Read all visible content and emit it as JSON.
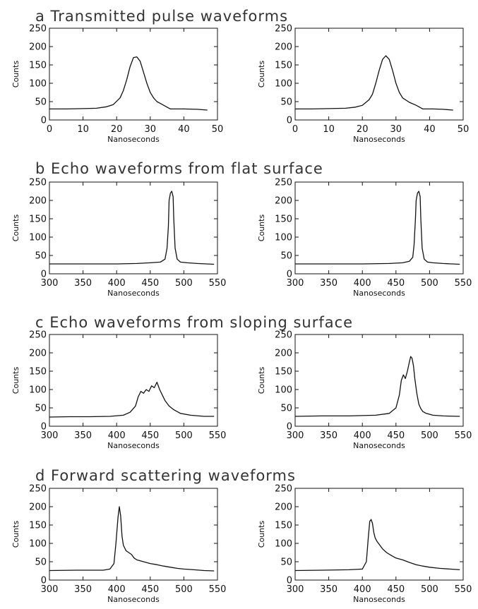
{
  "figure": {
    "sections": [
      {
        "id": "a",
        "title": "a Transmitted pulse waveforms"
      },
      {
        "id": "b",
        "title": "b Echo waveforms from flat surface"
      },
      {
        "id": "c",
        "title": "c Echo waveforms from sloping surface"
      },
      {
        "id": "d",
        "title": "d Forward scattering waveforms"
      }
    ]
  },
  "chart_data": [
    {
      "type": "line",
      "section": "a",
      "panel": "left",
      "xlabel": "Nanoseconds",
      "ylabel": "Counts",
      "xlim": [
        0,
        50
      ],
      "ylim": [
        0,
        250
      ],
      "xticks": [
        0,
        10,
        20,
        30,
        40,
        50
      ],
      "yticks": [
        0,
        50,
        100,
        150,
        200,
        250
      ],
      "series": [
        {
          "x": [
            0,
            5,
            10,
            14,
            17,
            19,
            21,
            22,
            23,
            24,
            25,
            26,
            27,
            28,
            29,
            30,
            31,
            32,
            33,
            34,
            36,
            40,
            44,
            47
          ],
          "y": [
            30,
            30,
            31,
            32,
            36,
            42,
            60,
            80,
            110,
            145,
            170,
            172,
            160,
            130,
            100,
            75,
            60,
            50,
            45,
            40,
            30,
            30,
            29,
            27
          ]
        }
      ]
    },
    {
      "type": "line",
      "section": "a",
      "panel": "right",
      "xlabel": "Nanoseconds",
      "ylabel": "Counts",
      "xlim": [
        0,
        50
      ],
      "ylim": [
        0,
        250
      ],
      "xticks": [
        0,
        10,
        20,
        30,
        40,
        50
      ],
      "yticks": [
        0,
        50,
        100,
        150,
        200,
        250
      ],
      "series": [
        {
          "x": [
            0,
            5,
            10,
            15,
            18,
            20,
            22,
            23,
            24,
            25,
            26,
            27,
            28,
            29,
            30,
            31,
            32,
            34,
            36,
            38,
            41,
            44,
            47
          ],
          "y": [
            30,
            30,
            31,
            32,
            35,
            40,
            55,
            70,
            100,
            135,
            165,
            175,
            165,
            135,
            100,
            75,
            60,
            48,
            40,
            30,
            30,
            29,
            27
          ]
        }
      ]
    },
    {
      "type": "line",
      "section": "b",
      "panel": "left",
      "xlabel": "Nanoseconds",
      "ylabel": "Counts",
      "xlim": [
        300,
        550
      ],
      "ylim": [
        0,
        250
      ],
      "xticks": [
        300,
        350,
        400,
        450,
        500,
        550
      ],
      "yticks": [
        0,
        50,
        100,
        150,
        200,
        250
      ],
      "series": [
        {
          "x": [
            300,
            350,
            400,
            430,
            450,
            465,
            472,
            475,
            477,
            478,
            480,
            482,
            484,
            485,
            487,
            490,
            495,
            505,
            520,
            545
          ],
          "y": [
            27,
            27,
            27,
            28,
            30,
            32,
            40,
            70,
            130,
            200,
            220,
            225,
            210,
            150,
            70,
            40,
            32,
            30,
            28,
            26
          ]
        }
      ]
    },
    {
      "type": "line",
      "section": "b",
      "panel": "right",
      "xlabel": "Nanoseconds",
      "ylabel": "Counts",
      "xlim": [
        300,
        550
      ],
      "ylim": [
        0,
        250
      ],
      "xticks": [
        300,
        350,
        400,
        450,
        500,
        550
      ],
      "yticks": [
        0,
        50,
        100,
        150,
        200,
        250
      ],
      "series": [
        {
          "x": [
            300,
            350,
            400,
            440,
            460,
            470,
            475,
            477,
            479,
            480,
            482,
            484,
            486,
            487,
            489,
            492,
            497,
            505,
            520,
            545
          ],
          "y": [
            27,
            27,
            27,
            28,
            30,
            34,
            45,
            80,
            150,
            200,
            220,
            225,
            210,
            150,
            70,
            40,
            32,
            30,
            28,
            26
          ]
        }
      ]
    },
    {
      "type": "line",
      "section": "c",
      "panel": "left",
      "xlabel": "Nanoseconds",
      "ylabel": "Counts",
      "xlim": [
        300,
        550
      ],
      "ylim": [
        0,
        250
      ],
      "xticks": [
        300,
        350,
        400,
        450,
        500,
        550
      ],
      "yticks": [
        0,
        50,
        100,
        150,
        200,
        250
      ],
      "series": [
        {
          "x": [
            300,
            330,
            360,
            390,
            410,
            420,
            428,
            432,
            436,
            440,
            444,
            448,
            452,
            456,
            460,
            464,
            468,
            472,
            478,
            485,
            495,
            510,
            530,
            545
          ],
          "y": [
            25,
            26,
            26,
            27,
            30,
            38,
            55,
            80,
            95,
            90,
            100,
            95,
            110,
            105,
            120,
            100,
            85,
            70,
            55,
            45,
            35,
            30,
            27,
            27
          ]
        }
      ]
    },
    {
      "type": "line",
      "section": "c",
      "panel": "right",
      "xlabel": "Nanoseconds",
      "ylabel": "Counts",
      "xlim": [
        300,
        550
      ],
      "ylim": [
        0,
        250
      ],
      "xticks": [
        300,
        350,
        400,
        450,
        500,
        550
      ],
      "yticks": [
        0,
        50,
        100,
        150,
        200,
        250
      ],
      "series": [
        {
          "x": [
            300,
            340,
            380,
            420,
            440,
            450,
            455,
            458,
            461,
            464,
            467,
            470,
            472,
            474,
            476,
            478,
            481,
            484,
            487,
            490,
            495,
            505,
            520,
            545
          ],
          "y": [
            27,
            28,
            28,
            30,
            35,
            50,
            85,
            125,
            140,
            130,
            150,
            175,
            190,
            185,
            165,
            130,
            90,
            60,
            48,
            40,
            35,
            30,
            28,
            27
          ]
        }
      ]
    },
    {
      "type": "line",
      "section": "d",
      "panel": "left",
      "xlabel": "Nanoseconds",
      "ylabel": "Counts",
      "xlim": [
        300,
        550
      ],
      "ylim": [
        0,
        250
      ],
      "xticks": [
        300,
        350,
        400,
        450,
        500,
        550
      ],
      "yticks": [
        0,
        50,
        100,
        150,
        200,
        250
      ],
      "series": [
        {
          "x": [
            300,
            340,
            380,
            390,
            396,
            399,
            402,
            404,
            406,
            408,
            410,
            414,
            418,
            422,
            426,
            430,
            440,
            450,
            460,
            470,
            480,
            490,
            500,
            515,
            530,
            545
          ],
          "y": [
            26,
            27,
            27,
            30,
            45,
            100,
            170,
            200,
            175,
            120,
            95,
            80,
            75,
            70,
            60,
            55,
            50,
            45,
            42,
            38,
            35,
            32,
            30,
            28,
            26,
            25
          ]
        }
      ]
    },
    {
      "type": "line",
      "section": "d",
      "panel": "right",
      "xlabel": "Nanoseconds",
      "ylabel": "Counts",
      "xlim": [
        300,
        550
      ],
      "ylim": [
        0,
        250
      ],
      "xticks": [
        300,
        350,
        400,
        450,
        500,
        550
      ],
      "yticks": [
        0,
        50,
        100,
        150,
        200,
        250
      ],
      "series": [
        {
          "x": [
            300,
            340,
            380,
            400,
            406,
            409,
            411,
            413,
            415,
            417,
            419,
            422,
            426,
            430,
            436,
            442,
            450,
            460,
            470,
            480,
            490,
            500,
            515,
            530,
            545
          ],
          "y": [
            26,
            27,
            28,
            30,
            50,
            120,
            160,
            165,
            155,
            130,
            115,
            105,
            95,
            85,
            75,
            68,
            60,
            55,
            48,
            42,
            38,
            35,
            32,
            30,
            28
          ]
        }
      ]
    }
  ]
}
